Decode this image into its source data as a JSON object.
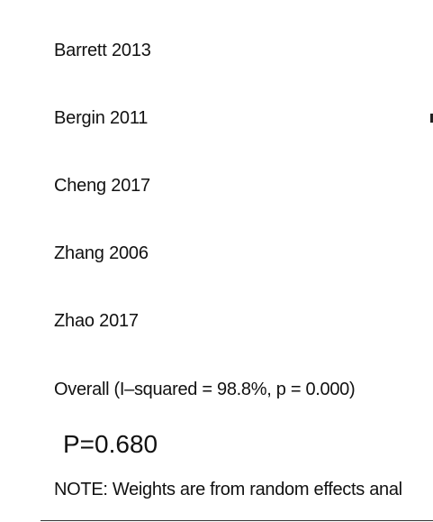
{
  "chart_data": {
    "type": "forest",
    "studies": [
      {
        "label": "Barrett 2013"
      },
      {
        "label": "Bergin 2011"
      },
      {
        "label": "Cheng 2017"
      },
      {
        "label": "Zhang 2006"
      },
      {
        "label": "Zhao 2017"
      }
    ],
    "overall_label": "Overall  (I–squared = 98.8%, p = 0.000)",
    "p_value_annotation": "P=0.680",
    "note": "NOTE: Weights are from random effects anal"
  }
}
